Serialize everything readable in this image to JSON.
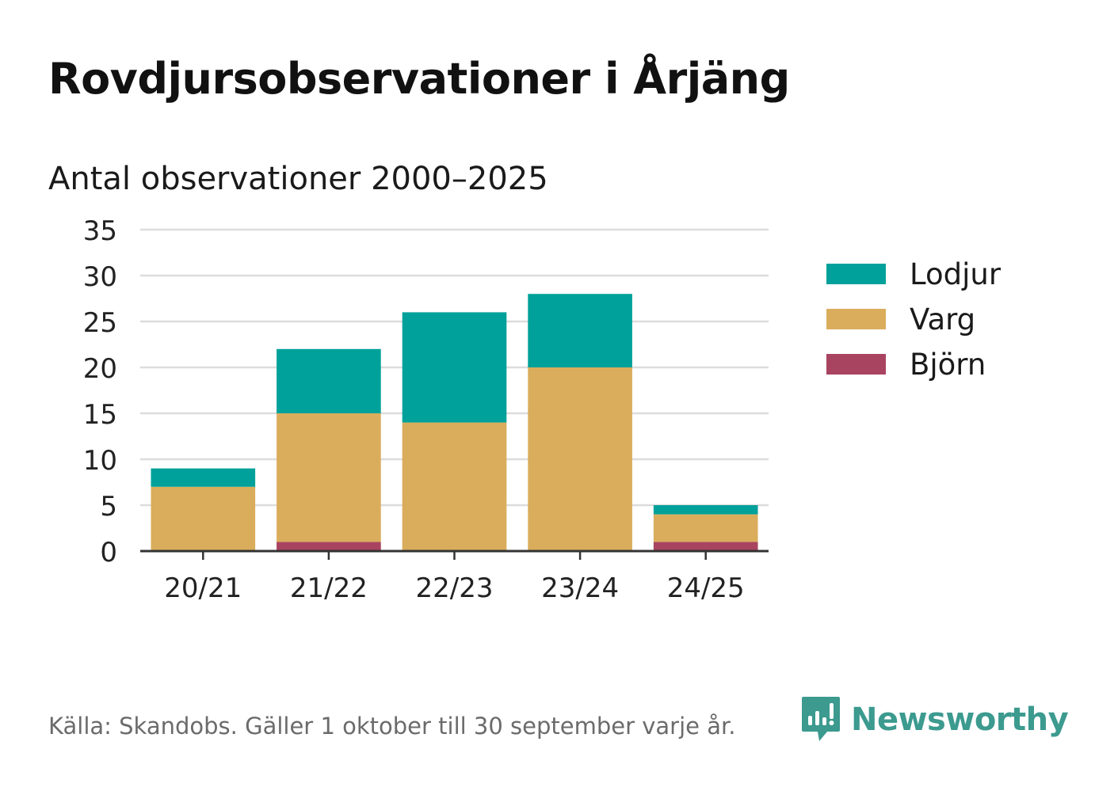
{
  "header": {
    "title": "Rovdjursobservationer i Årjäng"
  },
  "footer": {
    "source": "Källa: Skandobs. Gäller 1 oktober till 30 september varje år.",
    "logo_text": "Newsworthy"
  },
  "chart_data": {
    "type": "bar",
    "stacked": true,
    "title": "",
    "subtitle": "Antal observationer 2000–2025",
    "xlabel": "",
    "ylabel": "",
    "categories": [
      "20/21",
      "21/22",
      "22/23",
      "23/24",
      "24/25"
    ],
    "series": [
      {
        "name": "Björn",
        "color": "#a84460",
        "values": [
          0,
          1,
          0,
          0,
          1
        ]
      },
      {
        "name": "Varg",
        "color": "#daad5c",
        "values": [
          7,
          14,
          14,
          20,
          3
        ]
      },
      {
        "name": "Lodjur",
        "color": "#00a19a",
        "values": [
          2,
          7,
          12,
          8,
          1
        ]
      }
    ],
    "ylim": [
      0,
      35
    ],
    "yticks": [
      "0",
      "5",
      "10",
      "15",
      "20",
      "25",
      "30",
      "35"
    ],
    "grid": true,
    "legend": {
      "placement": "right",
      "order": [
        "Lodjur",
        "Varg",
        "Björn"
      ]
    }
  }
}
